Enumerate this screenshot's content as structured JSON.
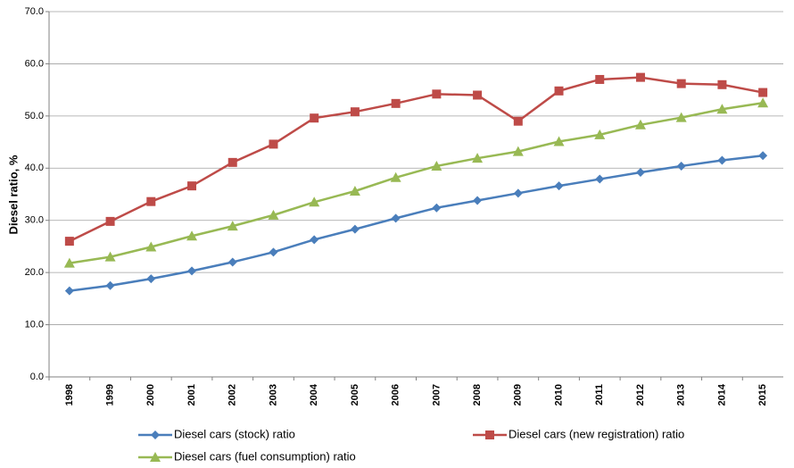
{
  "chart_data": {
    "type": "line",
    "y_label": "Diesel ratio, %",
    "categories": [
      "1998",
      "1999",
      "2000",
      "2001",
      "2002",
      "2003",
      "2004",
      "2005",
      "2006",
      "2007",
      "2008",
      "2009",
      "2010",
      "2011",
      "2012",
      "2013",
      "2014",
      "2015"
    ],
    "series": [
      {
        "name": "Diesel cars (stock) ratio",
        "color": "#4a7ebb",
        "marker": "diamond",
        "values": [
          16.5,
          17.5,
          18.8,
          20.3,
          22.0,
          23.9,
          26.3,
          28.3,
          30.4,
          32.4,
          33.8,
          35.2,
          36.6,
          37.9,
          39.2,
          40.4,
          41.5,
          42.4
        ]
      },
      {
        "name": "Diesel cars (new registration) ratio",
        "color": "#be4b48",
        "marker": "square",
        "values": [
          26.0,
          29.8,
          33.6,
          36.6,
          41.1,
          44.6,
          49.6,
          50.8,
          52.4,
          54.2,
          54.0,
          49.0,
          54.8,
          57.0,
          57.4,
          56.2,
          56.0,
          54.5
        ]
      },
      {
        "name": "Diesel cars (fuel consumption) ratio",
        "color": "#98b954",
        "marker": "triangle",
        "values": [
          21.8,
          23.0,
          24.9,
          27.0,
          28.9,
          31.0,
          33.5,
          35.6,
          38.2,
          40.4,
          41.9,
          43.2,
          45.1,
          46.4,
          48.3,
          49.7,
          51.3,
          52.5
        ]
      }
    ],
    "ylim": [
      0,
      70
    ],
    "yticks": [
      {
        "value": 0,
        "label": "0.0"
      },
      {
        "value": 10,
        "label": "10.0"
      },
      {
        "value": 20,
        "label": "20.0"
      },
      {
        "value": 30,
        "label": "30.0"
      },
      {
        "value": 40,
        "label": "40.0"
      },
      {
        "value": 50,
        "label": "50.0"
      },
      {
        "value": 60,
        "label": "60.0"
      },
      {
        "value": 70,
        "label": "70.0"
      }
    ],
    "grid": true
  }
}
